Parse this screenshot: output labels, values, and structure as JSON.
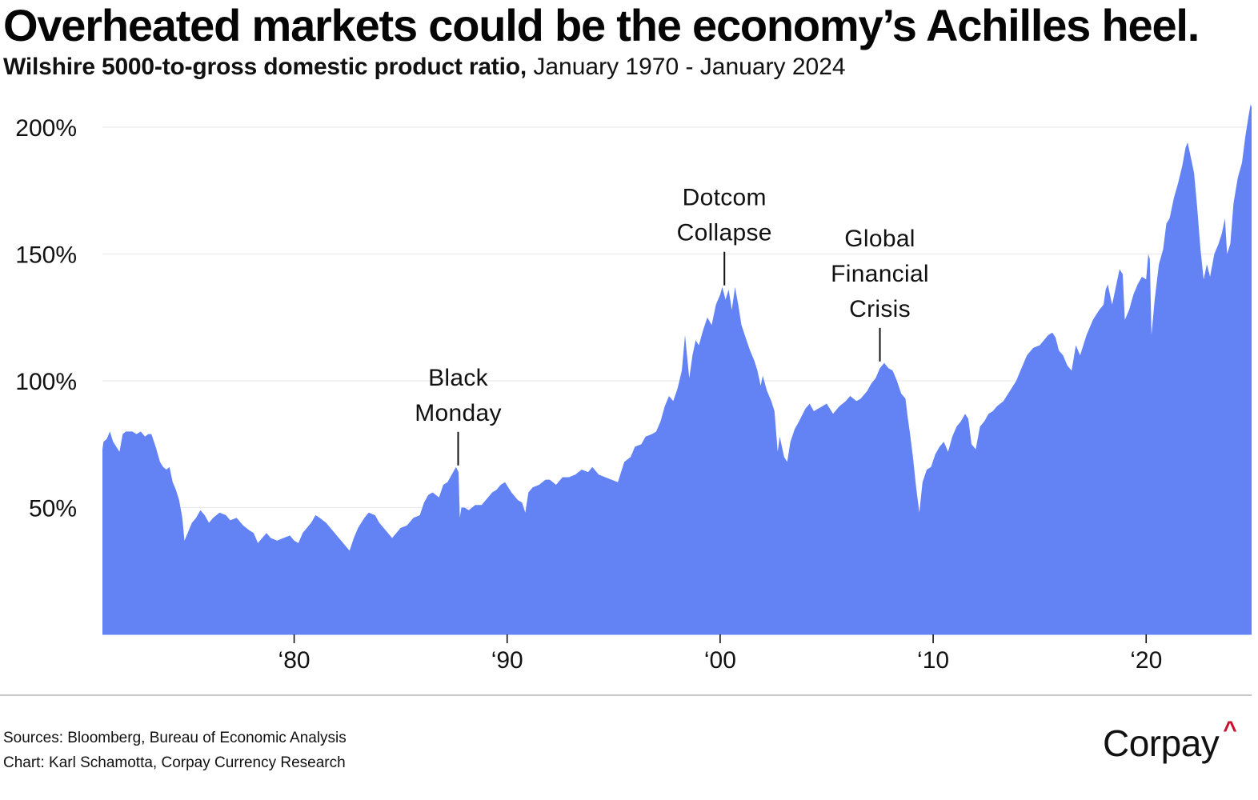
{
  "header": {
    "title": "Overheated markets could be the economy’s Achilles heel.",
    "subtitle_strong": "Wilshire 5000-to-gross domestic product ratio,",
    "subtitle_light": " January 1970 - January 2024"
  },
  "footer": {
    "sources": "Sources: Bloomberg, Bureau of Economic Analysis",
    "credit": "Chart: Karl Schamotta, Corpay Currency Research",
    "logo_text": "Corpay",
    "logo_caret": "^"
  },
  "colors": {
    "area_fill": "#6383F5",
    "gridline": "#EBEBEB",
    "text": "#111111",
    "logo_accent": "#C8102E",
    "divider": "#C8C8C8"
  },
  "chart_data": {
    "type": "area",
    "title": "Overheated markets could be the economy’s Achilles heel.",
    "subtitle": "Wilshire 5000-to-gross domestic product ratio, January 1970 - January 2024",
    "xlabel": "",
    "ylabel": "",
    "xlim": [
      1971.0,
      2024.95
    ],
    "ylim": [
      0,
      210
    ],
    "x_ticks": [
      {
        "value": 1980,
        "label": "‘80"
      },
      {
        "value": 1990,
        "label": "‘90"
      },
      {
        "value": 2000,
        "label": "‘00"
      },
      {
        "value": 2010,
        "label": "‘10"
      },
      {
        "value": 2020,
        "label": "‘20"
      }
    ],
    "y_ticks": [
      {
        "value": 50,
        "label": "50%"
      },
      {
        "value": 100,
        "label": "100%"
      },
      {
        "value": 150,
        "label": "150%"
      },
      {
        "value": 200,
        "label": "200%"
      }
    ],
    "grid": "horizontal",
    "legend": "none",
    "annotations": [
      {
        "x": 1987.7,
        "y": 66,
        "lines": [
          "Black",
          "Monday"
        ]
      },
      {
        "x": 2000.2,
        "y": 137,
        "lines": [
          "Dotcom",
          "Collapse"
        ]
      },
      {
        "x": 2007.5,
        "y": 107,
        "lines": [
          "Global",
          "Financial",
          "Crisis"
        ]
      }
    ],
    "series": [
      {
        "name": "Wilshire 5000 / GDP (%)",
        "x": [
          1971.0,
          1971.05,
          1971.2,
          1971.35,
          1971.5,
          1971.65,
          1971.8,
          1971.95,
          1972.1,
          1972.25,
          1972.4,
          1972.6,
          1972.8,
          1973.0,
          1973.15,
          1973.3,
          1973.5,
          1973.7,
          1973.85,
          1974.0,
          1974.15,
          1974.3,
          1974.45,
          1974.6,
          1974.75,
          1974.85,
          1975.0,
          1975.2,
          1975.4,
          1975.6,
          1975.8,
          1976.0,
          1976.2,
          1976.5,
          1976.8,
          1977.0,
          1977.3,
          1977.6,
          1977.9,
          1978.1,
          1978.3,
          1978.5,
          1978.7,
          1978.9,
          1979.2,
          1979.5,
          1979.8,
          1980.0,
          1980.2,
          1980.4,
          1980.6,
          1980.8,
          1981.0,
          1981.2,
          1981.5,
          1981.8,
          1982.0,
          1982.3,
          1982.6,
          1982.8,
          1983.0,
          1983.3,
          1983.5,
          1983.8,
          1984.0,
          1984.3,
          1984.6,
          1984.8,
          1985.0,
          1985.3,
          1985.6,
          1985.9,
          1986.1,
          1986.3,
          1986.5,
          1986.8,
          1987.0,
          1987.2,
          1987.4,
          1987.6,
          1987.72,
          1987.78,
          1987.85,
          1988.0,
          1988.2,
          1988.5,
          1988.8,
          1989.0,
          1989.3,
          1989.5,
          1989.7,
          1989.9,
          1990.2,
          1990.5,
          1990.7,
          1990.85,
          1991.0,
          1991.2,
          1991.5,
          1991.8,
          1992.0,
          1992.3,
          1992.6,
          1992.9,
          1993.2,
          1993.5,
          1993.8,
          1994.0,
          1994.3,
          1994.6,
          1994.9,
          1995.2,
          1995.5,
          1995.8,
          1996.0,
          1996.3,
          1996.5,
          1996.8,
          1997.0,
          1997.2,
          1997.4,
          1997.6,
          1997.8,
          1998.0,
          1998.2,
          1998.35,
          1998.55,
          1998.7,
          1998.85,
          1999.0,
          1999.2,
          1999.4,
          1999.6,
          1999.8,
          2000.0,
          2000.1,
          2000.25,
          2000.4,
          2000.55,
          2000.7,
          2000.85,
          2001.0,
          2001.2,
          2001.4,
          2001.6,
          2001.75,
          2001.9,
          2002.0,
          2002.2,
          2002.4,
          2002.55,
          2002.7,
          2002.8,
          2003.0,
          2003.15,
          2003.3,
          2003.5,
          2003.7,
          2004.0,
          2004.2,
          2004.4,
          2004.6,
          2004.8,
          2005.0,
          2005.3,
          2005.6,
          2005.9,
          2006.1,
          2006.4,
          2006.6,
          2006.9,
          2007.1,
          2007.3,
          2007.5,
          2007.7,
          2007.9,
          2008.1,
          2008.3,
          2008.5,
          2008.7,
          2008.8,
          2008.9,
          2009.05,
          2009.2,
          2009.35,
          2009.5,
          2009.7,
          2009.9,
          2010.1,
          2010.3,
          2010.5,
          2010.7,
          2010.9,
          2011.1,
          2011.3,
          2011.5,
          2011.65,
          2011.8,
          2012.0,
          2012.2,
          2012.4,
          2012.6,
          2012.8,
          2013.0,
          2013.3,
          2013.6,
          2013.9,
          2014.1,
          2014.4,
          2014.7,
          2015.0,
          2015.2,
          2015.4,
          2015.6,
          2015.75,
          2015.9,
          2016.1,
          2016.3,
          2016.5,
          2016.7,
          2016.9,
          2017.2,
          2017.5,
          2017.8,
          2018.0,
          2018.1,
          2018.2,
          2018.4,
          2018.6,
          2018.75,
          2018.9,
          2019.0,
          2019.2,
          2019.4,
          2019.6,
          2019.8,
          2020.0,
          2020.1,
          2020.17,
          2020.25,
          2020.4,
          2020.6,
          2020.8,
          2020.95,
          2021.1,
          2021.3,
          2021.5,
          2021.7,
          2021.85,
          2021.95,
          2022.1,
          2022.25,
          2022.4,
          2022.55,
          2022.7,
          2022.85,
          2023.0,
          2023.2,
          2023.4,
          2023.55,
          2023.7,
          2023.8,
          2023.95,
          2024.1,
          2024.3,
          2024.5,
          2024.65,
          2024.8,
          2024.9,
          2024.95
        ],
        "values": [
          73,
          76,
          77,
          80,
          76,
          74,
          72,
          79,
          80,
          80,
          80,
          79,
          80,
          78,
          79,
          79,
          74,
          68,
          66,
          65,
          66,
          60,
          57,
          53,
          46,
          37,
          40,
          44,
          46,
          49,
          47,
          44,
          46,
          48,
          47,
          45,
          46,
          43,
          41,
          40,
          36,
          38,
          40,
          38,
          37,
          38,
          39,
          37,
          36,
          40,
          42,
          44,
          47,
          46,
          44,
          41,
          39,
          36,
          33,
          38,
          42,
          46,
          48,
          47,
          44,
          41,
          38,
          40,
          42,
          43,
          46,
          47,
          52,
          55,
          56,
          54,
          59,
          60,
          63,
          66,
          64,
          46,
          50,
          50,
          49,
          51,
          51,
          53,
          56,
          57,
          59,
          60,
          56,
          53,
          52,
          48,
          56,
          58,
          59,
          61,
          61,
          59,
          62,
          62,
          63,
          65,
          64,
          66,
          63,
          62,
          61,
          60,
          68,
          70,
          74,
          75,
          78,
          79,
          80,
          84,
          90,
          94,
          92,
          97,
          104,
          118,
          101,
          110,
          116,
          114,
          120,
          125,
          122,
          130,
          134,
          137,
          132,
          136,
          128,
          137,
          130,
          122,
          117,
          112,
          108,
          104,
          98,
          102,
          96,
          92,
          88,
          72,
          78,
          70,
          68,
          76,
          81,
          84,
          89,
          91,
          88,
          89,
          90,
          91,
          87,
          90,
          92,
          94,
          92,
          93,
          96,
          99,
          101,
          105,
          107,
          105,
          104,
          100,
          95,
          93,
          86,
          80,
          70,
          58,
          48,
          60,
          65,
          66,
          71,
          74,
          76,
          72,
          78,
          82,
          84,
          87,
          85,
          75,
          73,
          82,
          84,
          87,
          88,
          90,
          92,
          96,
          100,
          104,
          110,
          113,
          114,
          116,
          118,
          119,
          117,
          112,
          110,
          106,
          104,
          114,
          110,
          118,
          124,
          128,
          130,
          136,
          138,
          130,
          138,
          144,
          142,
          124,
          128,
          134,
          138,
          141,
          140,
          150,
          148,
          118,
          132,
          146,
          152,
          162,
          164,
          172,
          178,
          185,
          192,
          194,
          188,
          182,
          168,
          152,
          140,
          146,
          141,
          150,
          154,
          158,
          164,
          150,
          154,
          170,
          180,
          186,
          196,
          204,
          209,
          208
        ]
      }
    ]
  }
}
